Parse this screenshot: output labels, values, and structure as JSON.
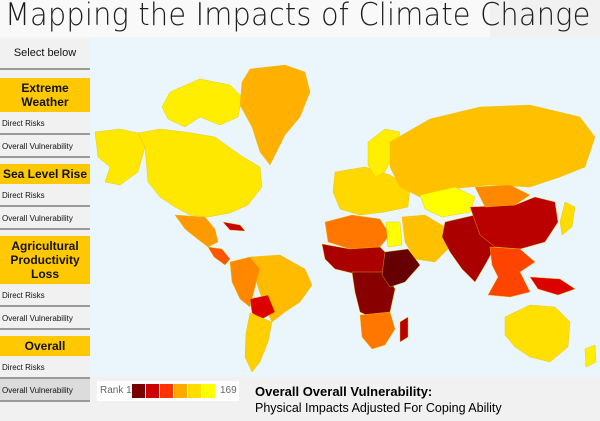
{
  "header": {
    "title": "Mapping the Impacts of Climate Change"
  },
  "sidebar": {
    "prompt": "Select below",
    "categories": [
      {
        "label": "Extreme Weather",
        "items": [
          {
            "label": "Direct Risks",
            "selected": false
          },
          {
            "label": "Overall Vulnerability",
            "selected": false
          }
        ]
      },
      {
        "label": "Sea Level Rise",
        "items": [
          {
            "label": "Direct Risks",
            "selected": false
          },
          {
            "label": "Overall Vulnerability",
            "selected": false
          }
        ]
      },
      {
        "label": "Agricultural Productivity Loss",
        "items": [
          {
            "label": "Direct Risks",
            "selected": false
          },
          {
            "label": "Overall Vulnerability",
            "selected": false
          }
        ]
      },
      {
        "label": "Overall",
        "items": [
          {
            "label": "Direct Risks",
            "selected": false
          },
          {
            "label": "Overall Vulnerability",
            "selected": true
          }
        ]
      }
    ]
  },
  "legend": {
    "min_label": "Rank 1",
    "max_label": "169",
    "colors": [
      "#7a0000",
      "#cc0000",
      "#ff3300",
      "#ffaa00",
      "#ffdd00",
      "#ffff00"
    ]
  },
  "caption": {
    "title": "Overall Overall Vulnerability:",
    "subtitle": "Physical Impacts Adjusted For Coping Ability"
  },
  "map": {
    "ocean_color": "#eaf5fc",
    "regions": [
      {
        "name": "north-america",
        "color": "#ffe800"
      },
      {
        "name": "canada-arctic",
        "color": "#ffee00"
      },
      {
        "name": "alaska",
        "color": "#ffe800"
      },
      {
        "name": "greenland",
        "color": "#ffb000"
      },
      {
        "name": "mexico",
        "color": "#ff9900"
      },
      {
        "name": "central-america",
        "color": "#ff5500"
      },
      {
        "name": "caribbean",
        "color": "#cc0000"
      },
      {
        "name": "south-america",
        "color": "#ffbb00"
      },
      {
        "name": "andes",
        "color": "#ff8800"
      },
      {
        "name": "bolivia",
        "color": "#dd0000"
      },
      {
        "name": "southern-cone",
        "color": "#ffd000"
      },
      {
        "name": "europe",
        "color": "#ffd800"
      },
      {
        "name": "scandinavia",
        "color": "#ffee00"
      },
      {
        "name": "russia",
        "color": "#ffc000"
      },
      {
        "name": "kazakhstan",
        "color": "#ffff00"
      },
      {
        "name": "north-africa",
        "color": "#ff7700"
      },
      {
        "name": "egypt",
        "color": "#ffff00"
      },
      {
        "name": "middle-east",
        "color": "#ffc000"
      },
      {
        "name": "sahel",
        "color": "#aa0000"
      },
      {
        "name": "central-africa",
        "color": "#880000"
      },
      {
        "name": "east-africa",
        "color": "#660000"
      },
      {
        "name": "southern-africa",
        "color": "#ff7700"
      },
      {
        "name": "madagascar",
        "color": "#bb0000"
      },
      {
        "name": "south-asia",
        "color": "#aa0000"
      },
      {
        "name": "china",
        "color": "#bb0000"
      },
      {
        "name": "mongolia",
        "color": "#ff8800"
      },
      {
        "name": "southeast-asia",
        "color": "#ff4400"
      },
      {
        "name": "japan",
        "color": "#ffdd00"
      },
      {
        "name": "australia",
        "color": "#ffe000"
      },
      {
        "name": "new-zealand",
        "color": "#ffee00"
      },
      {
        "name": "papua",
        "color": "#dd0000"
      }
    ]
  }
}
